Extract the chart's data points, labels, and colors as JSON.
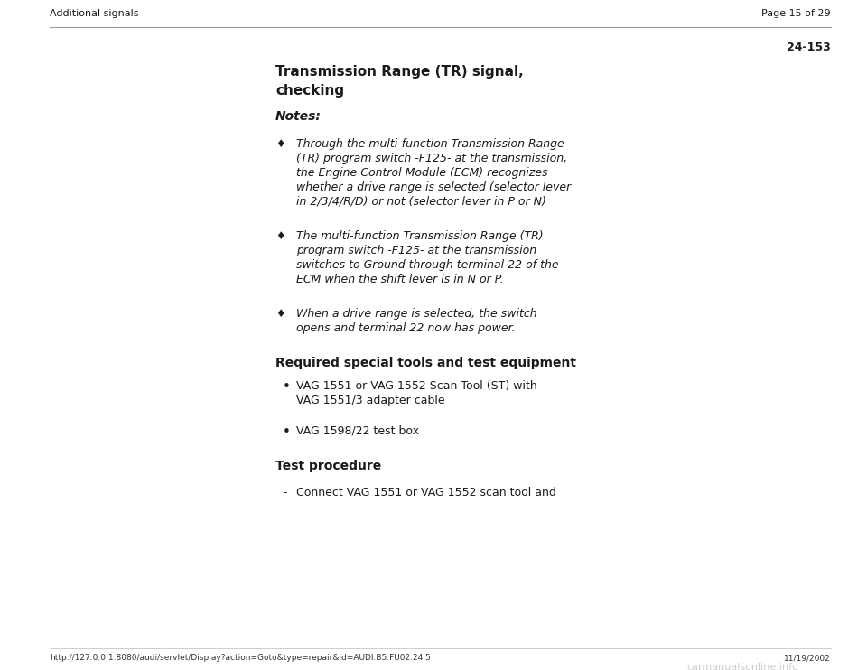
{
  "bg_color": "#ffffff",
  "text_color": "#1a1a1a",
  "header_left": "Additional signals",
  "header_right": "Page 15 of 29",
  "page_number": "24-153",
  "title_line1": "Transmission Range (TR) signal,",
  "title_line2": "checking",
  "notes_label": "Notes:",
  "bullet_char": "♦",
  "bullet1_lines": [
    "Through the multi-function Transmission Range",
    "(TR) program switch -F125- at the transmission,",
    "the Engine Control Module (ECM) recognizes",
    "whether a drive range is selected (selector lever",
    "in 2/3/4/R/D) or not (selector lever in P or N)"
  ],
  "bullet2_lines": [
    "The multi-function Transmission Range (TR)",
    "program switch -F125- at the transmission",
    "switches to Ground through terminal 22 of the",
    "ECM when the shift lever is in N or P."
  ],
  "bullet3_lines": [
    "When a drive range is selected, the switch",
    "opens and terminal 22 now has power."
  ],
  "section2_title": "Required special tools and test equipment",
  "round_bullet": "•",
  "tool1_lines": [
    "VAG 1551 or VAG 1552 Scan Tool (ST) with",
    "VAG 1551/3 adapter cable"
  ],
  "tool2_lines": [
    "VAG 1598/22 test box"
  ],
  "section3_title": "Test procedure",
  "dash_char": "-",
  "proc1_line": "Connect VAG 1551 or VAG 1552 scan tool and",
  "footer_url": "http://127.0.0.1:8080/audi/servlet/Display?action=Goto&type=repair&id=AUDI.B5.FU02.24.5",
  "footer_right": "11/19/2002",
  "footer_logo": "carmanualsonline.info"
}
